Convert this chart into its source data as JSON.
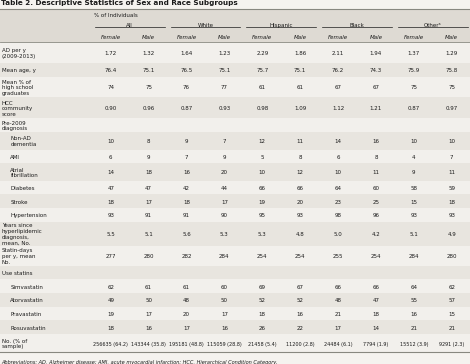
{
  "title": "Table 2. Descriptive Statistics of Sex and Race Subgroups",
  "group_labels": [
    "All",
    "White",
    "Hispanic",
    "Black",
    "Otherᵃ"
  ],
  "subheaders": [
    "Female",
    "Male",
    "Female",
    "Male",
    "Female",
    "Male",
    "Female",
    "Male",
    "Female",
    "Male"
  ],
  "rows": [
    [
      "AD per y\n(2009-2013)",
      "1.72",
      "1.32",
      "1.64",
      "1.23",
      "2.29",
      "1.86",
      "2.11",
      "1.94",
      "1.37",
      "1.29"
    ],
    [
      "Mean age, y",
      "76.4",
      "75.1",
      "76.5",
      "75.1",
      "75.7",
      "75.1",
      "76.2",
      "74.3",
      "75.9",
      "75.8"
    ],
    [
      "Mean % of\nhigh school\ngraduates",
      "74",
      "75",
      "76",
      "77",
      "61",
      "61",
      "67",
      "67",
      "75",
      "75"
    ],
    [
      "HCC\ncommunity\nscore",
      "0.90",
      "0.96",
      "0.87",
      "0.93",
      "0.98",
      "1.09",
      "1.12",
      "1.21",
      "0.87",
      "0.97"
    ],
    [
      "Pre-2009\ndiagnosis",
      "",
      "",
      "",
      "",
      "",
      "",
      "",
      "",
      "",
      ""
    ],
    [
      "Non-AD\ndementia",
      "10",
      "8",
      "9",
      "7",
      "12",
      "11",
      "14",
      "16",
      "10",
      "10"
    ],
    [
      "AMI",
      "6",
      "9",
      "7",
      "9",
      "5",
      "8",
      "6",
      "8",
      "4",
      "7"
    ],
    [
      "Atrial\nfibrillation",
      "14",
      "18",
      "16",
      "20",
      "10",
      "12",
      "10",
      "11",
      "9",
      "11"
    ],
    [
      "Diabetes",
      "47",
      "47",
      "42",
      "44",
      "66",
      "66",
      "64",
      "60",
      "58",
      "59"
    ],
    [
      "Stroke",
      "18",
      "17",
      "18",
      "17",
      "19",
      "20",
      "23",
      "25",
      "15",
      "18"
    ],
    [
      "Hypertension",
      "93",
      "91",
      "91",
      "90",
      "95",
      "93",
      "98",
      "96",
      "93",
      "93"
    ],
    [
      "Years since\nhyperlipidemic\ndiagnosis,\nmean, No.",
      "5.5",
      "5.1",
      "5.6",
      "5.3",
      "5.3",
      "4.8",
      "5.0",
      "4.2",
      "5.1",
      "4.9"
    ],
    [
      "Statin-days\nper y, mean\nNo.",
      "277",
      "280",
      "282",
      "284",
      "254",
      "254",
      "255",
      "254",
      "284",
      "280"
    ],
    [
      "Use statins",
      "",
      "",
      "",
      "",
      "",
      "",
      "",
      "",
      "",
      ""
    ],
    [
      "Simvastatin",
      "62",
      "61",
      "61",
      "60",
      "69",
      "67",
      "66",
      "66",
      "64",
      "62"
    ],
    [
      "Atorvastatin",
      "49",
      "50",
      "48",
      "50",
      "52",
      "52",
      "48",
      "47",
      "55",
      "57"
    ],
    [
      "Pravastatin",
      "19",
      "17",
      "20",
      "17",
      "18",
      "16",
      "21",
      "18",
      "16",
      "15"
    ],
    [
      "Rosuvastatin",
      "18",
      "16",
      "17",
      "16",
      "26",
      "22",
      "17",
      "14",
      "21",
      "21"
    ],
    [
      "No. (% of\nsample)",
      "256635 (64.2)",
      "143344 (35.8)",
      "195181 (48.8)",
      "115059 (28.8)",
      "21458 (5.4)",
      "11200 (2.8)",
      "24484 (6.1)",
      "7794 (1.9)",
      "15512 (3.9)",
      "9291 (2.3)"
    ]
  ],
  "section_rows": [
    4,
    13
  ],
  "indent_rows": [
    5,
    6,
    7,
    8,
    9,
    10,
    14,
    15,
    16,
    17
  ],
  "footnote": "Abbreviations: AD, Alzheimer disease; AMI, acute myocardial infarction; HCC, Hierarchical Condition Category.",
  "bg_odd": "#f2f0ec",
  "bg_even": "#e8e5df",
  "header_bg": "#dedad3",
  "fig_bg": "#f5f3ef",
  "text_color": "#1a1a1a",
  "line_color": "#888880"
}
